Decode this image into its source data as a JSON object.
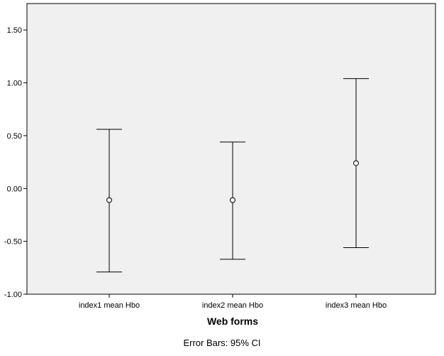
{
  "chart_data": {
    "type": "errorbar",
    "categories": [
      "index1 mean Hbo",
      "index2 mean Hbo",
      "index3 mean Hbo"
    ],
    "series": [
      {
        "values": [
          -0.11,
          -0.11,
          0.24
        ],
        "ci_lower": [
          -0.79,
          -0.67,
          -0.56
        ],
        "ci_upper": [
          0.56,
          0.44,
          1.04
        ]
      }
    ],
    "xlabel": "Web forms",
    "ylabel": "",
    "ylim": [
      -1.0,
      1.75
    ],
    "yticks": [
      -1.0,
      -0.5,
      0.0,
      0.5,
      1.0,
      1.5
    ],
    "ytick_labels": [
      "-1.00",
      "-0.50",
      "0.00",
      "0.50",
      "1.00",
      "1.50"
    ],
    "footnote": "Error Bars: 95% CI",
    "grid": false,
    "colors": {
      "plot_background": "#f0f0f0",
      "marks": "#000000"
    }
  }
}
